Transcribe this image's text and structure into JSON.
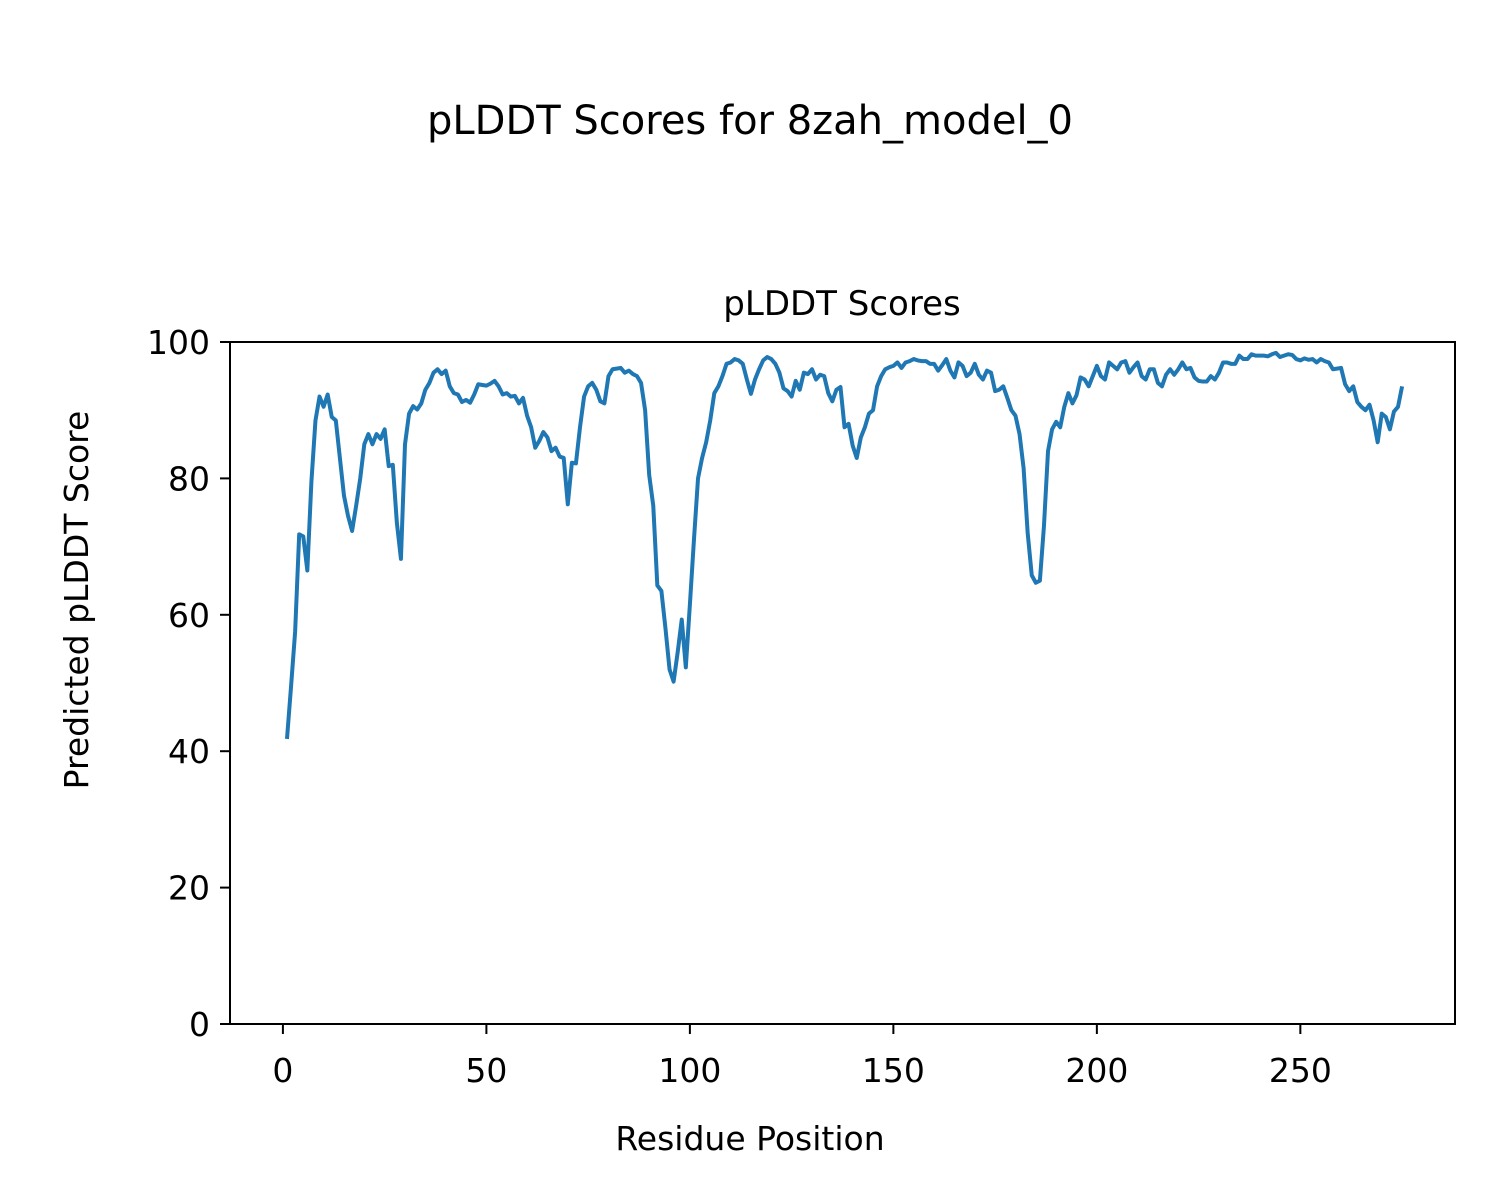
{
  "figure": {
    "suptitle": "pLDDT Scores for 8zah_model_0"
  },
  "chart_data": {
    "type": "line",
    "title": "pLDDT Scores",
    "xlabel": "Residue Position",
    "ylabel": "Predicted pLDDT Score",
    "xlim": [
      -13,
      288
    ],
    "ylim": [
      0,
      100
    ],
    "xticks": [
      0,
      50,
      100,
      150,
      200,
      250
    ],
    "yticks": [
      0,
      20,
      40,
      60,
      80,
      100
    ],
    "xtick_labels": [
      "0",
      "50",
      "100",
      "150",
      "200",
      "250"
    ],
    "ytick_labels": [
      "0",
      "20",
      "40",
      "60",
      "80",
      "100"
    ],
    "grid": false,
    "line_color": "#1f77b4",
    "series": [
      {
        "x_start": 1,
        "values": [
          41.8,
          49.5,
          57.5,
          71.8,
          71.5,
          66.5,
          79.5,
          88.5,
          92.0,
          90.5,
          92.3,
          89.0,
          88.5,
          83.0,
          77.5,
          74.5,
          72.3,
          76.0,
          80.0,
          85.0,
          86.5,
          85.0,
          86.5,
          85.8,
          87.2,
          81.8,
          82.0,
          73.5,
          68.2,
          85.0,
          89.5,
          90.6,
          90.1,
          91.0,
          93.0,
          94.0,
          95.5,
          96.0,
          95.3,
          95.8,
          93.5,
          92.5,
          92.3,
          91.2,
          91.5,
          91.1,
          92.3,
          93.8,
          93.7,
          93.6,
          93.9,
          94.3,
          93.5,
          92.3,
          92.5,
          92.0,
          92.1,
          91.0,
          91.8,
          89.2,
          87.5,
          84.5,
          85.5,
          86.8,
          86.0,
          84.0,
          84.5,
          83.2,
          83.0,
          76.2,
          82.3,
          82.2,
          87.5,
          92.0,
          93.5,
          94.0,
          93.0,
          91.3,
          91.0,
          95.0,
          96.0,
          96.1,
          96.2,
          95.5,
          95.8,
          95.3,
          95.0,
          94.0,
          90.0,
          80.5,
          76.0,
          64.3,
          63.5,
          58.0,
          52.0,
          50.2,
          54.5,
          59.3,
          52.3,
          61.5,
          71.0,
          80.0,
          83.0,
          85.3,
          88.5,
          92.5,
          93.5,
          95.0,
          96.8,
          97.0,
          97.5,
          97.3,
          96.8,
          94.5,
          92.4,
          94.5,
          96.0,
          97.3,
          97.8,
          97.5,
          96.8,
          95.5,
          93.2,
          92.8,
          92.0,
          94.3,
          93.0,
          95.5,
          95.3,
          96.0,
          94.5,
          95.2,
          95.0,
          92.5,
          91.3,
          93.0,
          93.4,
          87.5,
          88.0,
          84.8,
          83.0,
          86.0,
          87.5,
          89.5,
          90.0,
          93.5,
          95.0,
          96.0,
          96.3,
          96.5,
          97.0,
          96.2,
          97.0,
          97.2,
          97.5,
          97.3,
          97.2,
          97.2,
          96.8,
          96.8,
          95.8,
          96.6,
          97.5,
          95.8,
          94.8,
          97.0,
          96.5,
          95.0,
          95.5,
          96.8,
          95.2,
          94.5,
          95.8,
          95.5,
          92.8,
          93.0,
          93.5,
          91.8,
          90.0,
          89.2,
          86.5,
          81.5,
          72.0,
          65.8,
          64.7,
          65.0,
          73.0,
          84.0,
          87.2,
          88.3,
          87.5,
          90.5,
          92.5,
          91.0,
          92.2,
          94.8,
          94.5,
          93.5,
          95.0,
          96.5,
          95.0,
          94.5,
          97.0,
          96.5,
          96.0,
          97.0,
          97.2,
          95.5,
          96.3,
          97.0,
          95.0,
          94.5,
          96.0,
          96.0,
          94.0,
          93.5,
          95.2,
          96.0,
          95.2,
          96.0,
          97.0,
          96.0,
          96.2,
          94.8,
          94.3,
          94.2,
          94.2,
          95.0,
          94.5,
          95.5,
          97.0,
          97.0,
          96.8,
          96.8,
          98.0,
          97.5,
          97.5,
          98.2,
          98.0,
          98.0,
          98.0,
          97.9,
          98.2,
          98.4,
          97.8,
          98.0,
          98.2,
          98.1,
          97.5,
          97.3,
          97.6,
          97.4,
          97.5,
          97.0,
          97.5,
          97.2,
          97.0,
          96.0,
          96.1,
          96.2,
          93.8,
          92.8,
          93.5,
          91.2,
          90.5,
          90.0,
          90.8,
          88.5,
          85.3,
          89.5,
          89.0,
          87.2,
          89.8,
          90.5,
          93.5
        ]
      }
    ]
  }
}
